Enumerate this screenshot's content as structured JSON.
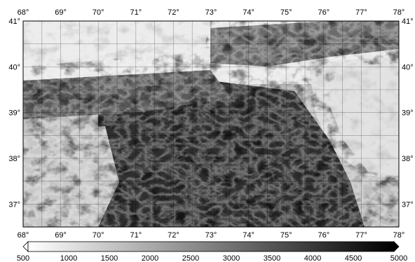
{
  "map": {
    "projection_note": "",
    "lon_ticks": [
      "68°",
      "69°",
      "70°",
      "71°",
      "72°",
      "73°",
      "74°",
      "75°",
      "76°",
      "77°",
      "78°"
    ],
    "lat_ticks": [
      "41°",
      "40°",
      "39°",
      "38°",
      "37°"
    ],
    "lon_range": [
      68,
      78
    ],
    "lat_range": [
      36.5,
      41
    ],
    "grid": true,
    "colormap": "grayscale-inverted"
  },
  "colorbar": {
    "min": 500,
    "max": 5000,
    "ticks": [
      "500",
      "1000",
      "1500",
      "2000",
      "2500",
      "3000",
      "3500",
      "4000",
      "4500",
      "5000"
    ],
    "low_color": "#ffffff",
    "high_color": "#000000"
  }
}
